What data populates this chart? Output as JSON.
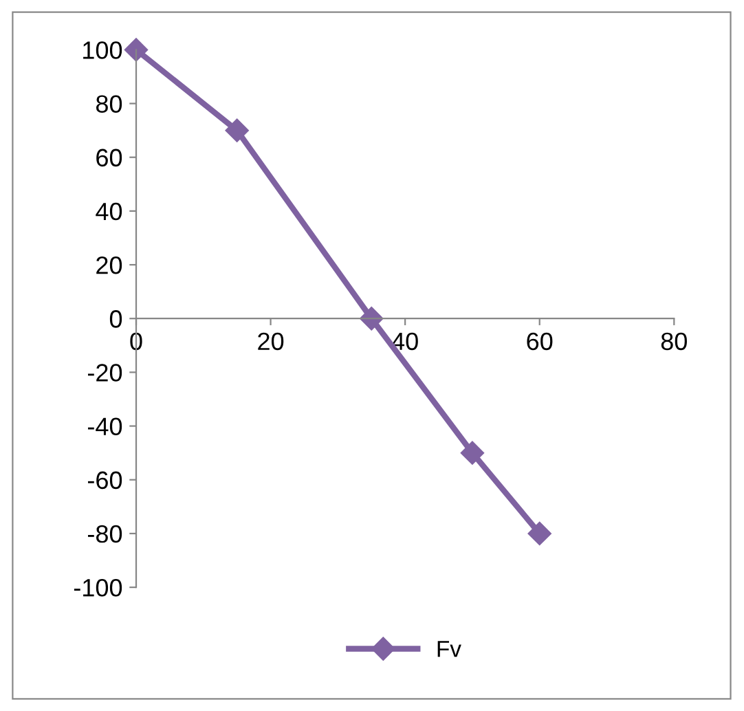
{
  "chart_data": {
    "type": "line",
    "x": [
      0,
      15,
      35,
      50,
      60
    ],
    "series": [
      {
        "name": "Fv",
        "color": "#7f62a1",
        "values": [
          100,
          70,
          0,
          -50,
          -80
        ]
      }
    ],
    "xlim": [
      0,
      80
    ],
    "xticks": [
      0,
      20,
      40,
      60,
      80
    ],
    "ylim": [
      -100,
      100
    ],
    "yticks": [
      -100,
      -80,
      -60,
      -40,
      -20,
      0,
      20,
      40,
      60,
      80,
      100
    ],
    "grid": false,
    "legend": "bottom",
    "marker": "diamond",
    "line_style": "solid"
  }
}
